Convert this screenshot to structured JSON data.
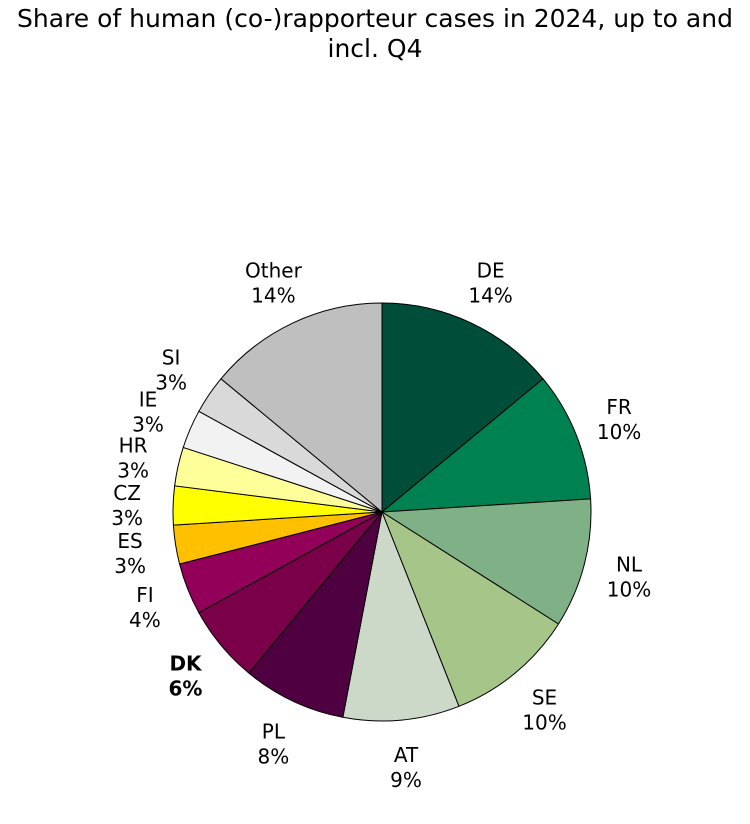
{
  "chart_data": {
    "type": "pie",
    "title_line1": "Share of human (co-)rapporteur cases in 2024, up to and",
    "title_line2": "incl. Q4",
    "start_angle_deg": 0,
    "direction": "clockwise",
    "slices": [
      {
        "label": "DE",
        "value": 14,
        "display": "14%",
        "color": "#004D3A",
        "bold": false
      },
      {
        "label": "FR",
        "value": 10,
        "display": "10%",
        "color": "#008152",
        "bold": false
      },
      {
        "label": "NL",
        "value": 10,
        "display": "10%",
        "color": "#80B086",
        "bold": false
      },
      {
        "label": "SE",
        "value": 10,
        "display": "10%",
        "color": "#A6C589",
        "bold": false
      },
      {
        "label": "AT",
        "value": 9,
        "display": "9%",
        "color": "#CCD8C8",
        "bold": false
      },
      {
        "label": "PL",
        "value": 8,
        "display": "8%",
        "color": "#4F0040",
        "bold": false
      },
      {
        "label": "DK",
        "value": 6,
        "display": "6%",
        "color": "#7A0049",
        "bold": true
      },
      {
        "label": "FI",
        "value": 4,
        "display": "4%",
        "color": "#92005A",
        "bold": false
      },
      {
        "label": "ES",
        "value": 3,
        "display": "3%",
        "color": "#FFC000",
        "bold": false
      },
      {
        "label": "CZ",
        "value": 3,
        "display": "3%",
        "color": "#FFFF00",
        "bold": false
      },
      {
        "label": "HR",
        "value": 3,
        "display": "3%",
        "color": "#FFFF99",
        "bold": false
      },
      {
        "label": "IE",
        "value": 3,
        "display": "3%",
        "color": "#F2F2F2",
        "bold": false
      },
      {
        "label": "SI",
        "value": 3,
        "display": "3%",
        "color": "#D9D9D9",
        "bold": false
      },
      {
        "label": "Other",
        "value": 14,
        "display": "14%",
        "color": "#BFBFBF",
        "bold": false
      }
    ]
  }
}
